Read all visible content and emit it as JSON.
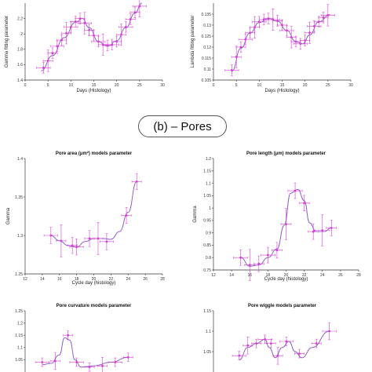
{
  "section_label": "(b) – Pores",
  "chart_data": [
    {
      "id": "gamma_top",
      "type": "line",
      "title": "",
      "xlabel": "Days (Histology)",
      "ylabel": "Gamma fitting parameter",
      "xlim": [
        0,
        30
      ],
      "ylim": [
        1.4,
        2.4
      ],
      "xticks": [
        "0",
        "5",
        "10",
        "15",
        "20",
        "25",
        "30"
      ],
      "yticks": [
        "1.4",
        "1.6",
        "1.8",
        "2",
        "2.2"
      ],
      "points": [
        {
          "x": 4,
          "y": 1.56
        },
        {
          "x": 5,
          "y": 1.65
        },
        {
          "x": 6,
          "y": 1.75
        },
        {
          "x": 7,
          "y": 1.84
        },
        {
          "x": 8,
          "y": 1.92
        },
        {
          "x": 9,
          "y": 2.01
        },
        {
          "x": 10,
          "y": 2.09
        },
        {
          "x": 11,
          "y": 2.16
        },
        {
          "x": 12,
          "y": 2.2
        },
        {
          "x": 13,
          "y": 2.14
        },
        {
          "x": 14,
          "y": 2.05
        },
        {
          "x": 15,
          "y": 1.98
        },
        {
          "x": 16,
          "y": 1.9
        },
        {
          "x": 17,
          "y": 1.86
        },
        {
          "x": 18,
          "y": 1.85
        },
        {
          "x": 19,
          "y": 1.86
        },
        {
          "x": 20,
          "y": 1.9
        },
        {
          "x": 21,
          "y": 1.99
        },
        {
          "x": 22,
          "y": 2.09
        },
        {
          "x": 23,
          "y": 2.19
        },
        {
          "x": 24,
          "y": 2.28
        },
        {
          "x": 25,
          "y": 2.36
        }
      ],
      "fit": [
        [
          3.5,
          1.52
        ],
        [
          6,
          1.72
        ],
        [
          8.5,
          1.95
        ],
        [
          11,
          2.15
        ],
        [
          12.5,
          2.2
        ],
        [
          14,
          2.08
        ],
        [
          16,
          1.9
        ],
        [
          18,
          1.84
        ],
        [
          20,
          1.91
        ],
        [
          22,
          2.08
        ],
        [
          24,
          2.27
        ],
        [
          25.5,
          2.4
        ]
      ]
    },
    {
      "id": "lambda_top",
      "type": "line",
      "title": "",
      "xlabel": "Days (Histology)",
      "ylabel": "Lambda fitting parameter",
      "xlim": [
        0,
        30
      ],
      "ylim": [
        0.105,
        0.14
      ],
      "xticks": [
        "0",
        "5",
        "10",
        "15",
        "20",
        "25",
        "30"
      ],
      "yticks": [
        "0.105",
        "0.11",
        "0.115",
        "0.12",
        "0.125",
        "0.13",
        "0.135"
      ],
      "points": [
        {
          "x": 4,
          "y": 0.1095
        },
        {
          "x": 5,
          "y": 0.1155
        },
        {
          "x": 6,
          "y": 0.12
        },
        {
          "x": 7,
          "y": 0.1235
        },
        {
          "x": 8,
          "y": 0.1265
        },
        {
          "x": 9,
          "y": 0.129
        },
        {
          "x": 10,
          "y": 0.1315
        },
        {
          "x": 11,
          "y": 0.1325
        },
        {
          "x": 12,
          "y": 0.133
        },
        {
          "x": 13,
          "y": 0.1325
        },
        {
          "x": 14,
          "y": 0.132
        },
        {
          "x": 15,
          "y": 0.13
        },
        {
          "x": 16,
          "y": 0.1275
        },
        {
          "x": 17,
          "y": 0.1245
        },
        {
          "x": 18,
          "y": 0.1225
        },
        {
          "x": 19,
          "y": 0.1215
        },
        {
          "x": 20,
          "y": 0.123
        },
        {
          "x": 21,
          "y": 0.1265
        },
        {
          "x": 22,
          "y": 0.1295
        },
        {
          "x": 23,
          "y": 0.1315
        },
        {
          "x": 24,
          "y": 0.1335
        },
        {
          "x": 25,
          "y": 0.1345
        }
      ],
      "fit": [
        [
          4,
          0.109
        ],
        [
          6,
          0.1195
        ],
        [
          8,
          0.1265
        ],
        [
          10,
          0.1312
        ],
        [
          12,
          0.133
        ],
        [
          14,
          0.1318
        ],
        [
          16,
          0.1276
        ],
        [
          18,
          0.1225
        ],
        [
          19.5,
          0.1215
        ],
        [
          21,
          0.1255
        ],
        [
          23,
          0.1315
        ],
        [
          25.5,
          0.1348
        ]
      ]
    },
    {
      "id": "pore_area",
      "type": "line",
      "title": "Pore area (μm²) models parameter",
      "xlabel": "Cycle day (histology)",
      "ylabel": "Gamma",
      "xlim": [
        12,
        28
      ],
      "ylim": [
        1.25,
        1.4
      ],
      "xticks": [
        "12",
        "14",
        "16",
        "18",
        "20",
        "22",
        "24",
        "26",
        "28"
      ],
      "yticks": [
        "1.25",
        "1.3",
        "1.35",
        "1.4"
      ],
      "points": [
        {
          "x": 15,
          "y": 1.3
        },
        {
          "x": 16.2,
          "y": 1.293
        },
        {
          "x": 17.5,
          "y": 1.287
        },
        {
          "x": 18,
          "y": 1.285
        },
        {
          "x": 19.5,
          "y": 1.296
        },
        {
          "x": 20.5,
          "y": 1.296
        },
        {
          "x": 21.5,
          "y": 1.292
        },
        {
          "x": 23.8,
          "y": 1.326
        },
        {
          "x": 25,
          "y": 1.37
        }
      ],
      "fit": [
        [
          15,
          1.3
        ],
        [
          16,
          1.293
        ],
        [
          17,
          1.287
        ],
        [
          18,
          1.285
        ],
        [
          19,
          1.292
        ],
        [
          20,
          1.296
        ],
        [
          21,
          1.296
        ],
        [
          22,
          1.295
        ],
        [
          23,
          1.305
        ],
        [
          24,
          1.33
        ],
        [
          25,
          1.37
        ]
      ]
    },
    {
      "id": "pore_length",
      "type": "line",
      "title": "Pore length (μm) models parameter",
      "xlabel": "Cycle day (histology)",
      "ylabel": "Gamma",
      "xlim": [
        12,
        28
      ],
      "ylim": [
        0.75,
        1.2
      ],
      "xticks": [
        "12",
        "14",
        "16",
        "18",
        "20",
        "22",
        "24",
        "26",
        "28"
      ],
      "yticks": [
        "0.75",
        "0.8",
        "0.85",
        "0.9",
        "0.95",
        "1",
        "1.05",
        "1.1",
        "1.15",
        "1.2"
      ],
      "points": [
        {
          "x": 15,
          "y": 0.8
        },
        {
          "x": 16,
          "y": 0.77
        },
        {
          "x": 17,
          "y": 0.775
        },
        {
          "x": 18,
          "y": 0.81
        },
        {
          "x": 19,
          "y": 0.83
        },
        {
          "x": 20,
          "y": 0.935
        },
        {
          "x": 21,
          "y": 1.07
        },
        {
          "x": 22,
          "y": 1.02
        },
        {
          "x": 23,
          "y": 0.905
        },
        {
          "x": 24,
          "y": 0.91
        },
        {
          "x": 25,
          "y": 0.92
        }
      ],
      "fit": [
        [
          15,
          0.8
        ],
        [
          16,
          0.765
        ],
        [
          17,
          0.77
        ],
        [
          18,
          0.8
        ],
        [
          19,
          0.835
        ],
        [
          19.8,
          0.93
        ],
        [
          20.5,
          1.06
        ],
        [
          21.3,
          1.075
        ],
        [
          22,
          1.03
        ],
        [
          22.6,
          0.94
        ],
        [
          23.3,
          0.905
        ],
        [
          24.2,
          0.905
        ],
        [
          25,
          0.92
        ]
      ]
    },
    {
      "id": "pore_curvature",
      "type": "line",
      "title": "Pore curvature models parameter",
      "xlabel": "",
      "ylabel": "",
      "xlim": [
        12,
        28
      ],
      "ylim": [
        1.0,
        1.25
      ],
      "xticks": [],
      "yticks": [
        "1.05",
        "1.1",
        "1.15",
        "1.2",
        "1.25"
      ],
      "points": [
        {
          "x": 14,
          "y": 1.04
        },
        {
          "x": 15.5,
          "y": 1.045
        },
        {
          "x": 17,
          "y": 1.15
        },
        {
          "x": 18,
          "y": 1.04
        },
        {
          "x": 19.5,
          "y": 1.02
        },
        {
          "x": 21,
          "y": 1.025
        },
        {
          "x": 22.5,
          "y": 1.04
        },
        {
          "x": 24,
          "y": 1.06
        }
      ],
      "fit": [
        [
          14,
          1.03
        ],
        [
          15,
          1.035
        ],
        [
          16,
          1.07
        ],
        [
          16.6,
          1.14
        ],
        [
          17.2,
          1.13
        ],
        [
          17.8,
          1.05
        ],
        [
          18.5,
          1.02
        ],
        [
          20,
          1.025
        ],
        [
          22,
          1.04
        ],
        [
          24,
          1.06
        ]
      ]
    },
    {
      "id": "pore_wiggle",
      "type": "line",
      "title": "Pore wiggle models parameter",
      "xlabel": "",
      "ylabel": "",
      "xlim": [
        12,
        28
      ],
      "ylim": [
        1.0,
        1.15
      ],
      "xticks": [],
      "yticks": [
        "1",
        "1.05",
        "1.1",
        "1.15"
      ],
      "points": [
        {
          "x": 15,
          "y": 1.04
        },
        {
          "x": 16,
          "y": 1.065
        },
        {
          "x": 17,
          "y": 1.07
        },
        {
          "x": 18,
          "y": 1.08
        },
        {
          "x": 18.7,
          "y": 1.07
        },
        {
          "x": 19.5,
          "y": 1.04
        },
        {
          "x": 20.5,
          "y": 1.075
        },
        {
          "x": 22,
          "y": 1.045
        },
        {
          "x": 24,
          "y": 1.07
        },
        {
          "x": 25.5,
          "y": 1.1
        }
      ],
      "fit": [
        [
          15,
          1.03
        ],
        [
          16,
          1.06
        ],
        [
          17,
          1.07
        ],
        [
          18,
          1.08
        ],
        [
          18.5,
          1.06
        ],
        [
          19.2,
          1.035
        ],
        [
          20,
          1.06
        ],
        [
          20.8,
          1.075
        ],
        [
          21.5,
          1.05
        ],
        [
          22.3,
          1.035
        ],
        [
          23.5,
          1.06
        ],
        [
          25.5,
          1.1
        ]
      ]
    }
  ],
  "colors": {
    "marker": "#d63fd6",
    "fit_primary": "#3b62c8",
    "fit_secondary": "#e05ad0",
    "axis": "#333333"
  }
}
